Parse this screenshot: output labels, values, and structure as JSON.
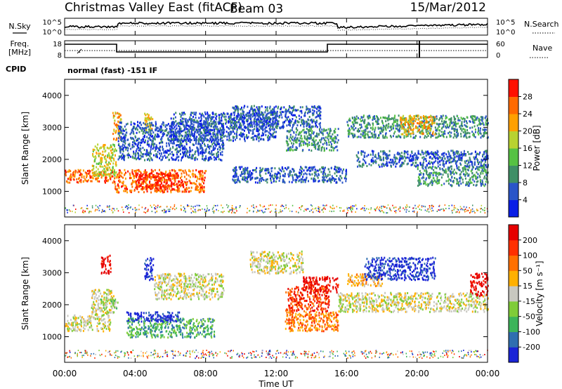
{
  "header": {
    "station": "Christmas Valley East (fitACF)",
    "beam": "Beam 03",
    "date": "15/Mar/2012"
  },
  "top_panel": {
    "left_label": "N.Sky",
    "right_label": "N.Search",
    "left_ticks": [
      "10^5",
      "10^0"
    ],
    "right_ticks": [
      "10^5",
      "10^0"
    ]
  },
  "freq_panel": {
    "left_label_1": "Freq.",
    "left_label_2": "[MHz]",
    "right_label": "Nave",
    "left_ticks": [
      "18",
      "8"
    ],
    "right_ticks": [
      "60",
      "0"
    ]
  },
  "cpid": {
    "label": "CPID",
    "value": "normal (fast) -151 IF"
  },
  "chart_data": [
    {
      "type": "heatmap",
      "name": "",
      "ylabel": "Slant Range [km]",
      "xlabel": "",
      "y_ticks": [
        "1000",
        "2000",
        "3000",
        "4000"
      ],
      "colorbar_label": "Power [dB]",
      "colorbar_ticks": [
        "4",
        "8",
        "12",
        "16",
        "20",
        "24",
        "28"
      ],
      "colorbar_colors": [
        "#0a1ee6",
        "#2a55c8",
        "#3f8f66",
        "#56c243",
        "#b8d230",
        "#ffa000",
        "#ff6a00",
        "#ff1000"
      ],
      "ylim": [
        200,
        4500
      ],
      "xlim_hours": [
        0,
        24
      ],
      "regions": [
        {
          "t": [
            0.0,
            2.8
          ],
          "r": [
            1300,
            1700
          ],
          "level": 6
        },
        {
          "t": [
            1.5,
            2.9
          ],
          "r": [
            1500,
            2500
          ],
          "level": 4
        },
        {
          "t": [
            2.7,
            3.2
          ],
          "r": [
            2600,
            3500
          ],
          "level": 5
        },
        {
          "t": [
            2.8,
            8.0
          ],
          "r": [
            1000,
            1700
          ],
          "level": 6
        },
        {
          "t": [
            4.0,
            6.5
          ],
          "r": [
            1100,
            1600
          ],
          "level": 7
        },
        {
          "t": [
            4.5,
            5.0
          ],
          "r": [
            2900,
            3500
          ],
          "level": 5
        },
        {
          "t": [
            3.0,
            9.0
          ],
          "r": [
            2000,
            3200
          ],
          "level": 1
        },
        {
          "t": [
            6.0,
            12.0
          ],
          "r": [
            2600,
            3500
          ],
          "level": 1
        },
        {
          "t": [
            9.5,
            14.5
          ],
          "r": [
            3000,
            3700
          ],
          "level": 1
        },
        {
          "t": [
            9.5,
            16.0
          ],
          "r": [
            1300,
            1800
          ],
          "level": 1
        },
        {
          "t": [
            12.5,
            15.5
          ],
          "r": [
            2300,
            3000
          ],
          "level": 2
        },
        {
          "t": [
            16.0,
            24.0
          ],
          "r": [
            2700,
            3400
          ],
          "level": 2
        },
        {
          "t": [
            19.0,
            21.0
          ],
          "r": [
            2800,
            3400
          ],
          "level": 5
        },
        {
          "t": [
            16.5,
            24.0
          ],
          "r": [
            1800,
            2300
          ],
          "level": 1
        },
        {
          "t": [
            20.0,
            24.0
          ],
          "r": [
            1200,
            1800
          ],
          "level": 2
        }
      ]
    },
    {
      "type": "heatmap",
      "name": "",
      "ylabel": "Slant Range [km]",
      "xlabel": "Time UT",
      "y_ticks": [
        "1000",
        "2000",
        "3000",
        "4000"
      ],
      "x_ticks": [
        "00:00",
        "04:00",
        "08:00",
        "12:00",
        "16:00",
        "20:00",
        "00:00"
      ],
      "colorbar_label": "Velocity [m s⁻¹]",
      "colorbar_ticks": [
        "200",
        "100",
        "50",
        "15",
        "-15",
        "-50",
        "-100",
        "-200"
      ],
      "colorbar_colors": [
        "#1a24d6",
        "#2f6fb0",
        "#3cb45a",
        "#7fcc38",
        "#c8c8c0",
        "#ffb000",
        "#ff7000",
        "#ff3000",
        "#e60000"
      ],
      "ylim": [
        200,
        4500
      ],
      "xlim_hours": [
        0,
        24
      ],
      "regions": [
        {
          "t": [
            0.0,
            2.6
          ],
          "r": [
            1200,
            1700
          ],
          "level": 4
        },
        {
          "t": [
            1.5,
            2.9
          ],
          "r": [
            1700,
            2500
          ],
          "level": 4
        },
        {
          "t": [
            2.0,
            3.0
          ],
          "r": [
            1900,
            2200
          ],
          "level": 3
        },
        {
          "t": [
            2.0,
            2.6
          ],
          "r": [
            3000,
            3600
          ],
          "level": 8
        },
        {
          "t": [
            3.5,
            8.5
          ],
          "r": [
            1000,
            1600
          ],
          "level": 2
        },
        {
          "t": [
            3.5,
            6.5
          ],
          "r": [
            1500,
            1800
          ],
          "level": 0
        },
        {
          "t": [
            4.5,
            5.0
          ],
          "r": [
            2800,
            3500
          ],
          "level": 0
        },
        {
          "t": [
            5.0,
            9.0
          ],
          "r": [
            2200,
            3000
          ],
          "level": 4
        },
        {
          "t": [
            10.5,
            13.5
          ],
          "r": [
            3000,
            3700
          ],
          "level": 4
        },
        {
          "t": [
            12.5,
            15.5
          ],
          "r": [
            1200,
            1800
          ],
          "level": 6
        },
        {
          "t": [
            12.5,
            15.0
          ],
          "r": [
            1800,
            2600
          ],
          "level": 7
        },
        {
          "t": [
            13.5,
            15.5
          ],
          "r": [
            2400,
            2900
          ],
          "level": 8
        },
        {
          "t": [
            16.0,
            18.0
          ],
          "r": [
            2600,
            3000
          ],
          "level": 5
        },
        {
          "t": [
            17.0,
            21.0
          ],
          "r": [
            2800,
            3500
          ],
          "level": 0
        },
        {
          "t": [
            15.5,
            24.0
          ],
          "r": [
            1800,
            2400
          ],
          "level": 4
        },
        {
          "t": [
            23.0,
            24.0
          ],
          "r": [
            2300,
            3000
          ],
          "level": 8
        }
      ]
    }
  ],
  "time_axis": {
    "label": "Time UT",
    "ticks": [
      "00:00",
      "04:00",
      "08:00",
      "12:00",
      "16:00",
      "20:00",
      "00:00"
    ]
  }
}
